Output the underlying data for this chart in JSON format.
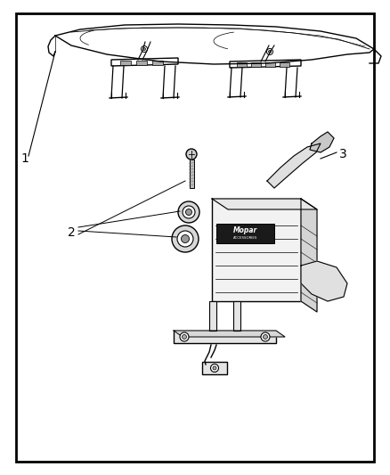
{
  "bg": "#ffffff",
  "lc": "#000000",
  "border": [
    18,
    15,
    402,
    503
  ],
  "label_1": "1",
  "label_2": "2",
  "label_3": "3",
  "fig_width": 4.38,
  "fig_height": 5.33,
  "dpi": 100
}
